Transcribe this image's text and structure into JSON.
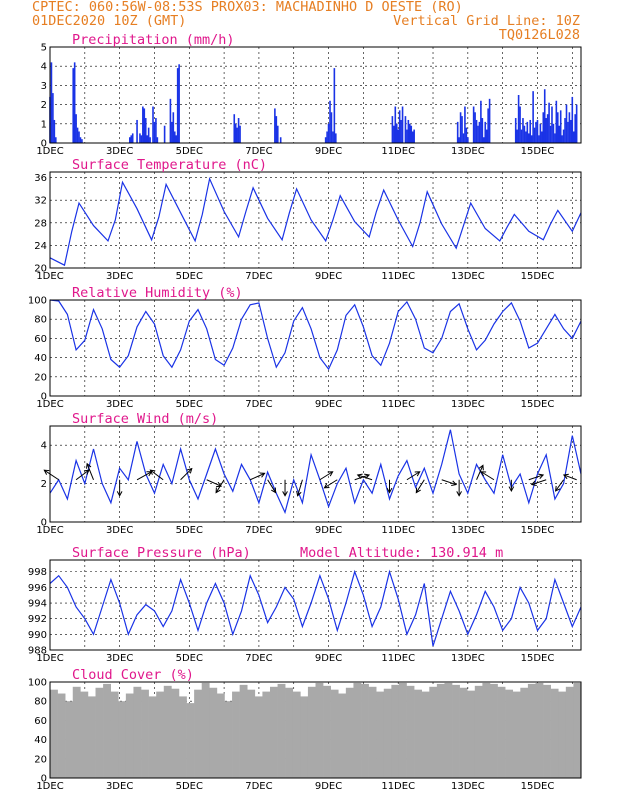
{
  "header": {
    "line1": "CPTEC:   060:56W-08:53S   PROX03: MACHADINHO D OESTE (RO)",
    "line2_left": "01DEC2020 10Z (GMT)",
    "line2_right": "Vertical Grid Line: 10Z",
    "line3_right": "TQ0126L028"
  },
  "x_axis": {
    "ticks": [
      "1DEC",
      "3DEC",
      "5DEC",
      "7DEC",
      "9DEC",
      "11DEC",
      "13DEC",
      "15DEC"
    ],
    "hours_range": [
      0,
      366
    ]
  },
  "colors": {
    "header": "#e67e22",
    "title": "#e0188c",
    "line": "#1a33e6",
    "cloud": "#a9a9a9"
  },
  "chart_data": [
    {
      "type": "bar",
      "title": "Precipitation (mm/h)",
      "ylim": [
        0,
        5
      ],
      "yticks": [
        0,
        1,
        2,
        3,
        4,
        5
      ],
      "series": [
        {
          "x": [
            0,
            1,
            2,
            3,
            4,
            16,
            17,
            18,
            19,
            20,
            21,
            22,
            55,
            56,
            57,
            60,
            62,
            63,
            64,
            65,
            66,
            67,
            68,
            69,
            71,
            72,
            73,
            74,
            79,
            83,
            84,
            85,
            86,
            87,
            88,
            89,
            127,
            128,
            129,
            130,
            131,
            155,
            156,
            157,
            159,
            190,
            191,
            192,
            193,
            194,
            195,
            196,
            197,
            236,
            237,
            238,
            239,
            240,
            241,
            242,
            243,
            245,
            246,
            247,
            248,
            249,
            250,
            251,
            281,
            282,
            283,
            284,
            285,
            286,
            287,
            288,
            292,
            293,
            294,
            295,
            296,
            297,
            298,
            299,
            300,
            301,
            302,
            303,
            321,
            322,
            323,
            324,
            325,
            326,
            327,
            328,
            329,
            330,
            331,
            332,
            333,
            334,
            335,
            336,
            337,
            338,
            339,
            340,
            341,
            342,
            343,
            344,
            345,
            346,
            347,
            348,
            349,
            350,
            351,
            352,
            353,
            354,
            355,
            356,
            357,
            358,
            359,
            360,
            361,
            362,
            363
          ],
          "values": [
            2.4,
            4.2,
            2.6,
            1.2,
            0.3,
            3.9,
            4.2,
            1.5,
            0.8,
            0.6,
            0.3,
            0.2,
            0.3,
            0.4,
            0.5,
            1.2,
            0.5,
            0.4,
            1.9,
            1.8,
            1.3,
            0.4,
            0.8,
            0.3,
            1.9,
            1.1,
            1.3,
            0.3,
            0.9,
            2.3,
            1.1,
            1.6,
            0.6,
            0.4,
            3.9,
            4.1,
            1.5,
            1.0,
            0.8,
            1.3,
            0.9,
            1.8,
            1.4,
            0.9,
            0.3,
            0.3,
            0.6,
            1.0,
            2.2,
            1.6,
            0.6,
            3.9,
            0.5,
            1.4,
            0.9,
            1.9,
            1.0,
            0.7,
            1.7,
            1.2,
            1.9,
            1.4,
            0.7,
            1.2,
            1.0,
            0.9,
            0.6,
            0.7,
            1.1,
            0.3,
            1.6,
            1.4,
            0.5,
            1.9,
            0.8,
            0.3,
            1.9,
            1.6,
            1.2,
            0.9,
            1.1,
            2.2,
            1.3,
            0.3,
            1.1,
            0.7,
            1.8,
            2.3,
            1.3,
            0.7,
            2.5,
            1.9,
            0.7,
            1.3,
            0.9,
            0.6,
            1.1,
            0.5,
            1.2,
            0.4,
            2.7,
            0.8,
            1.1,
            1.2,
            0.4,
            1.0,
            0.6,
            1.6,
            2.8,
            1.3,
            1.5,
            2.1,
            0.9,
            1.9,
            1.0,
            0.5,
            2.2,
            1.6,
            0.9,
            1.7,
            0.4,
            0.7,
            1.3,
            2.0,
            1.1,
            1.6,
            1.2,
            2.4,
            0.6,
            1.5,
            2.0
          ]
        }
      ]
    },
    {
      "type": "line",
      "title": "Surface Temperature (nC)",
      "ylim": [
        20,
        37
      ],
      "yticks": [
        20,
        24,
        28,
        32,
        36
      ],
      "series": [
        {
          "x": [
            0,
            10,
            15,
            20,
            30,
            40,
            45,
            50,
            60,
            70,
            75,
            80,
            90,
            100,
            105,
            110,
            120,
            130,
            135,
            140,
            150,
            160,
            165,
            170,
            180,
            190,
            195,
            200,
            210,
            220,
            225,
            230,
            240,
            250,
            255,
            260,
            270,
            280,
            285,
            290,
            300,
            310,
            315,
            320,
            330,
            340,
            345,
            350,
            360,
            366
          ],
          "values": [
            21.8,
            20.5,
            26.5,
            31.5,
            27.5,
            24.8,
            28.5,
            35.2,
            30.5,
            25.0,
            29.0,
            34.8,
            29.8,
            24.8,
            29.5,
            35.8,
            30.0,
            25.5,
            30.0,
            34.2,
            28.8,
            25.0,
            29.8,
            34.0,
            28.5,
            24.8,
            28.5,
            32.8,
            28.2,
            25.5,
            30.0,
            33.8,
            28.5,
            23.8,
            28.0,
            33.5,
            27.8,
            23.5,
            27.5,
            31.5,
            27.0,
            24.8,
            27.2,
            29.5,
            26.5,
            25.0,
            27.8,
            30.2,
            26.5,
            29.8
          ]
        }
      ]
    },
    {
      "type": "line",
      "title": "Relative Humidity (%)",
      "ylim": [
        0,
        100
      ],
      "yticks": [
        0,
        20,
        40,
        60,
        80,
        100
      ],
      "series": [
        {
          "x": [
            0,
            6,
            12,
            18,
            24,
            30,
            36,
            42,
            48,
            54,
            60,
            66,
            72,
            78,
            84,
            90,
            96,
            102,
            108,
            114,
            120,
            126,
            132,
            138,
            144,
            150,
            156,
            162,
            168,
            174,
            180,
            186,
            192,
            198,
            204,
            210,
            216,
            222,
            228,
            234,
            240,
            246,
            252,
            258,
            264,
            270,
            276,
            282,
            288,
            294,
            300,
            306,
            312,
            318,
            324,
            330,
            336,
            342,
            348,
            354,
            360,
            366
          ],
          "values": [
            100,
            99,
            85,
            48,
            58,
            90,
            70,
            38,
            30,
            42,
            72,
            88,
            75,
            42,
            30,
            48,
            78,
            90,
            70,
            38,
            32,
            50,
            80,
            95,
            97,
            60,
            30,
            45,
            78,
            92,
            70,
            40,
            28,
            48,
            84,
            95,
            72,
            42,
            32,
            55,
            88,
            98,
            80,
            50,
            45,
            60,
            88,
            96,
            70,
            48,
            58,
            75,
            88,
            97,
            78,
            50,
            55,
            70,
            85,
            70,
            60,
            78
          ]
        }
      ]
    },
    {
      "type": "line",
      "title": "Surface Wind (m/s)",
      "ylim": [
        0,
        5
      ],
      "yticks": [
        0,
        2,
        4
      ],
      "series": [
        {
          "x": [
            0,
            6,
            12,
            18,
            24,
            30,
            36,
            42,
            48,
            54,
            60,
            66,
            72,
            78,
            84,
            90,
            96,
            102,
            108,
            114,
            120,
            126,
            132,
            138,
            144,
            150,
            156,
            162,
            168,
            174,
            180,
            186,
            192,
            198,
            204,
            210,
            216,
            222,
            228,
            234,
            240,
            246,
            252,
            258,
            264,
            270,
            276,
            282,
            288,
            294,
            300,
            306,
            312,
            318,
            324,
            330,
            336,
            342,
            348,
            354,
            360,
            366
          ],
          "values": [
            1.5,
            2.2,
            1.2,
            3.2,
            2.0,
            3.8,
            2.0,
            1.0,
            2.8,
            2.2,
            4.2,
            2.5,
            1.5,
            3.0,
            2.0,
            3.8,
            2.2,
            1.2,
            2.5,
            3.8,
            2.5,
            1.6,
            3.0,
            2.2,
            1.0,
            2.6,
            1.5,
            0.5,
            2.2,
            1.0,
            3.5,
            2.2,
            0.8,
            2.0,
            2.8,
            1.0,
            2.2,
            1.5,
            3.0,
            1.2,
            2.4,
            3.2,
            1.8,
            2.8,
            1.5,
            3.0,
            4.8,
            2.5,
            1.5,
            3.0,
            2.2,
            1.5,
            3.5,
            1.8,
            2.5,
            1.0,
            2.5,
            3.5,
            1.2,
            2.0,
            4.5,
            2.5
          ]
        }
      ],
      "arrows": [
        {
          "x": 6,
          "u": -0.9,
          "v": 0.6
        },
        {
          "x": 18,
          "u": 0.8,
          "v": 0.6
        },
        {
          "x": 30,
          "u": -0.4,
          "v": 1.0
        },
        {
          "x": 48,
          "u": 0.0,
          "v": -1.0
        },
        {
          "x": 60,
          "u": 0.9,
          "v": 0.5
        },
        {
          "x": 78,
          "u": -0.8,
          "v": 0.6
        },
        {
          "x": 90,
          "u": 0.7,
          "v": 0.7
        },
        {
          "x": 108,
          "u": 0.9,
          "v": -0.4
        },
        {
          "x": 120,
          "u": -0.5,
          "v": -0.8
        },
        {
          "x": 138,
          "u": 0.9,
          "v": 0.4
        },
        {
          "x": 150,
          "u": 0.5,
          "v": -0.8
        },
        {
          "x": 162,
          "u": 0.0,
          "v": -1.0
        },
        {
          "x": 174,
          "u": -0.3,
          "v": -1.0
        },
        {
          "x": 186,
          "u": 0.8,
          "v": 0.5
        },
        {
          "x": 198,
          "u": -0.8,
          "v": -0.5
        },
        {
          "x": 210,
          "u": 0.9,
          "v": 0.3
        },
        {
          "x": 222,
          "u": -0.9,
          "v": 0.3
        },
        {
          "x": 234,
          "u": 0.0,
          "v": -0.8
        },
        {
          "x": 246,
          "u": 0.8,
          "v": 0.5
        },
        {
          "x": 258,
          "u": -0.5,
          "v": -0.8
        },
        {
          "x": 270,
          "u": 0.9,
          "v": -0.3
        },
        {
          "x": 282,
          "u": 0.0,
          "v": -1.0
        },
        {
          "x": 294,
          "u": 0.4,
          "v": 0.9
        },
        {
          "x": 306,
          "u": -0.8,
          "v": 0.5
        },
        {
          "x": 318,
          "u": 0.0,
          "v": -0.7
        },
        {
          "x": 330,
          "u": 0.9,
          "v": 0.3
        },
        {
          "x": 342,
          "u": -0.9,
          "v": -0.3
        },
        {
          "x": 354,
          "u": -0.5,
          "v": -0.7
        },
        {
          "x": 363,
          "u": -0.8,
          "v": 0.3
        }
      ]
    },
    {
      "type": "line",
      "title": "Surface Pressure (hPa)",
      "annotation": "Model Altitude: 130.914 m",
      "ylim": [
        988,
        999.5
      ],
      "yticks": [
        988,
        990,
        992,
        994,
        996,
        998
      ],
      "series": [
        {
          "x": [
            0,
            6,
            12,
            18,
            24,
            30,
            36,
            42,
            48,
            54,
            60,
            66,
            72,
            78,
            84,
            90,
            96,
            102,
            108,
            114,
            120,
            126,
            132,
            138,
            144,
            150,
            156,
            162,
            168,
            174,
            180,
            186,
            192,
            198,
            204,
            210,
            216,
            222,
            228,
            234,
            240,
            246,
            252,
            258,
            264,
            270,
            276,
            282,
            288,
            294,
            300,
            306,
            312,
            318,
            324,
            330,
            336,
            342,
            348,
            354,
            360,
            366
          ],
          "values": [
            996.5,
            997.5,
            996.0,
            993.5,
            992.0,
            990.0,
            993.5,
            997.0,
            994.0,
            990.0,
            992.5,
            993.8,
            993.0,
            991.0,
            993.0,
            997.0,
            994.0,
            990.5,
            994.0,
            996.5,
            994.0,
            990.0,
            993.0,
            997.5,
            995.0,
            991.5,
            993.5,
            996.0,
            994.5,
            991.0,
            994.0,
            997.5,
            994.5,
            990.5,
            994.0,
            998.0,
            995.0,
            991.0,
            993.5,
            998.0,
            994.5,
            990.0,
            992.5,
            996.5,
            988.5,
            992.0,
            995.5,
            993.0,
            990.0,
            992.5,
            995.5,
            993.5,
            990.5,
            992.0,
            996.0,
            994.0,
            990.5,
            992.0,
            997.0,
            994.0,
            991.0,
            993.5
          ]
        }
      ]
    },
    {
      "type": "bar",
      "title": "Cloud Cover (%)",
      "ylim": [
        0,
        100
      ],
      "yticks": [
        0,
        20,
        40,
        60,
        80,
        100
      ],
      "series": [
        {
          "values": [
            92,
            88,
            80,
            95,
            90,
            85,
            94,
            98,
            90,
            80,
            88,
            95,
            92,
            85,
            90,
            96,
            93,
            85,
            78,
            92,
            99,
            94,
            88,
            80,
            90,
            97,
            92,
            85,
            90,
            95,
            98,
            94,
            90,
            85,
            95,
            99,
            96,
            92,
            88,
            94,
            99,
            98,
            95,
            90,
            93,
            97,
            99,
            96,
            92,
            90,
            95,
            98,
            99,
            97,
            94,
            91,
            96,
            99,
            98,
            95,
            92,
            90,
            94,
            98,
            99,
            97,
            93,
            90,
            95,
            99
          ]
        }
      ]
    }
  ]
}
